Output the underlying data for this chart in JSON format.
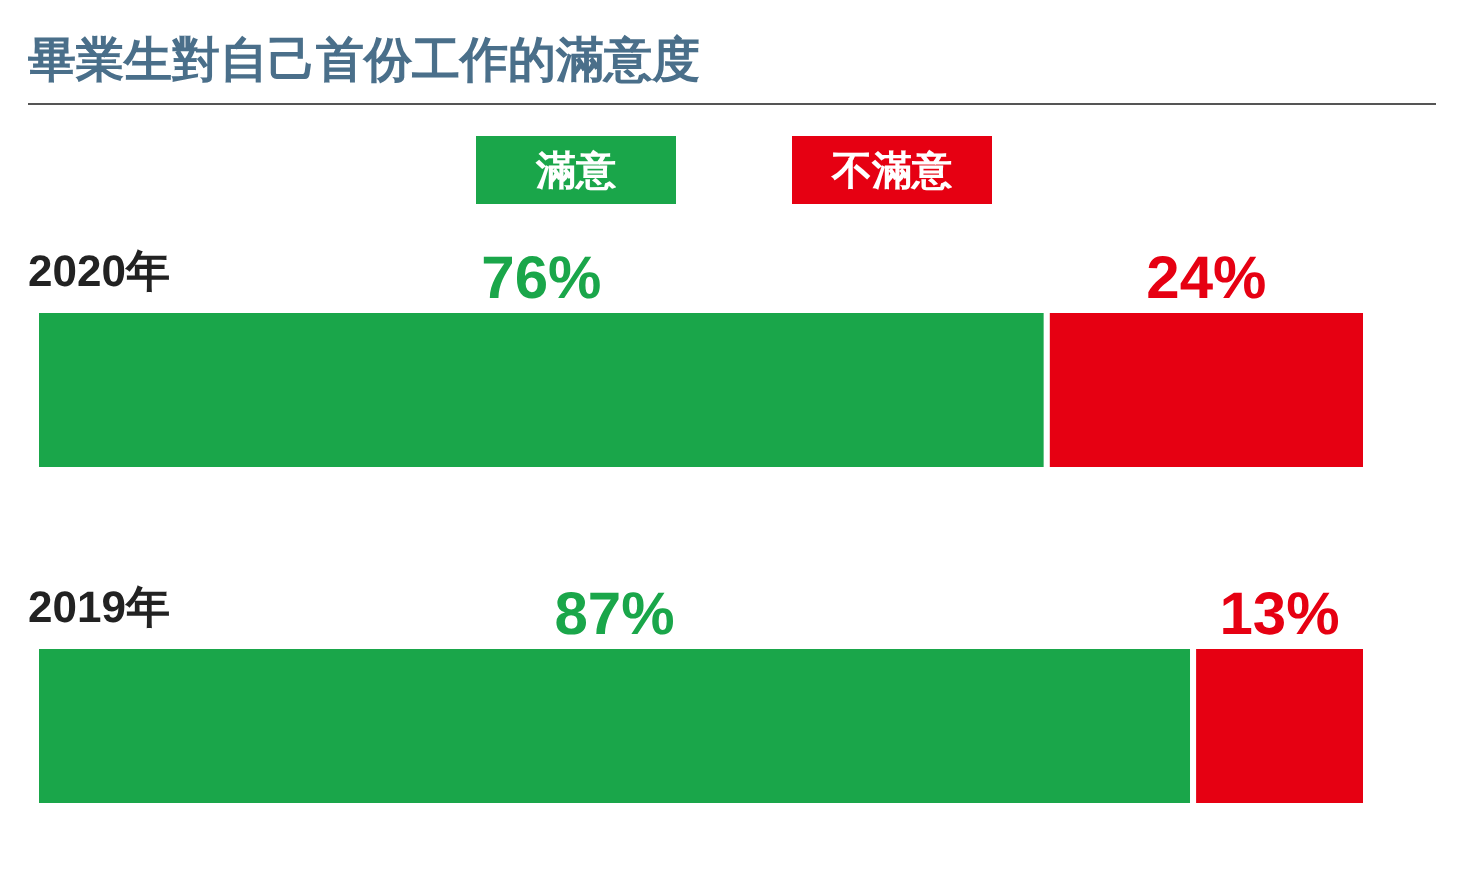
{
  "chart_data": {
    "type": "bar",
    "orientation": "horizontal",
    "stacked": true,
    "title": "畢業生對自己首份工作的滿意度",
    "categories": [
      "2020年",
      "2019年"
    ],
    "legend": "top",
    "series": [
      {
        "name": "滿意",
        "color": "#1aa64a",
        "values": [
          76,
          87
        ],
        "value_labels": [
          "76%",
          "87%"
        ]
      },
      {
        "name": "不滿意",
        "color": "#e60012",
        "values": [
          24,
          13
        ],
        "value_labels": [
          "24%",
          "13%"
        ]
      }
    ]
  }
}
